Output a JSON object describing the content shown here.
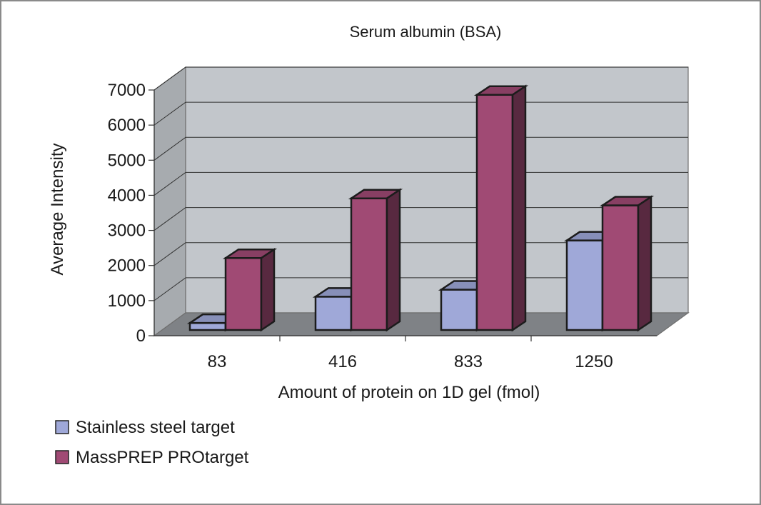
{
  "chart_data": {
    "type": "bar",
    "title": "Serum albumin (BSA)",
    "xlabel": "Amount of protein on 1D gel (fmol)",
    "ylabel": "Average Intensity",
    "categories": [
      "83",
      "416",
      "833",
      "1250"
    ],
    "ylim": [
      0,
      7000
    ],
    "yticks": [
      "0",
      "1000",
      "2000",
      "3000",
      "4000",
      "5000",
      "6000",
      "7000"
    ],
    "grid": true,
    "legend_position": "bottom-left",
    "series": [
      {
        "name": "Stainless steel target",
        "values": [
          200,
          950,
          1150,
          2550
        ],
        "color": "#9fa8d8"
      },
      {
        "name": "MassPREP PROtarget",
        "values": [
          2050,
          3750,
          6700,
          3550
        ],
        "color": "#a04a74"
      }
    ]
  }
}
